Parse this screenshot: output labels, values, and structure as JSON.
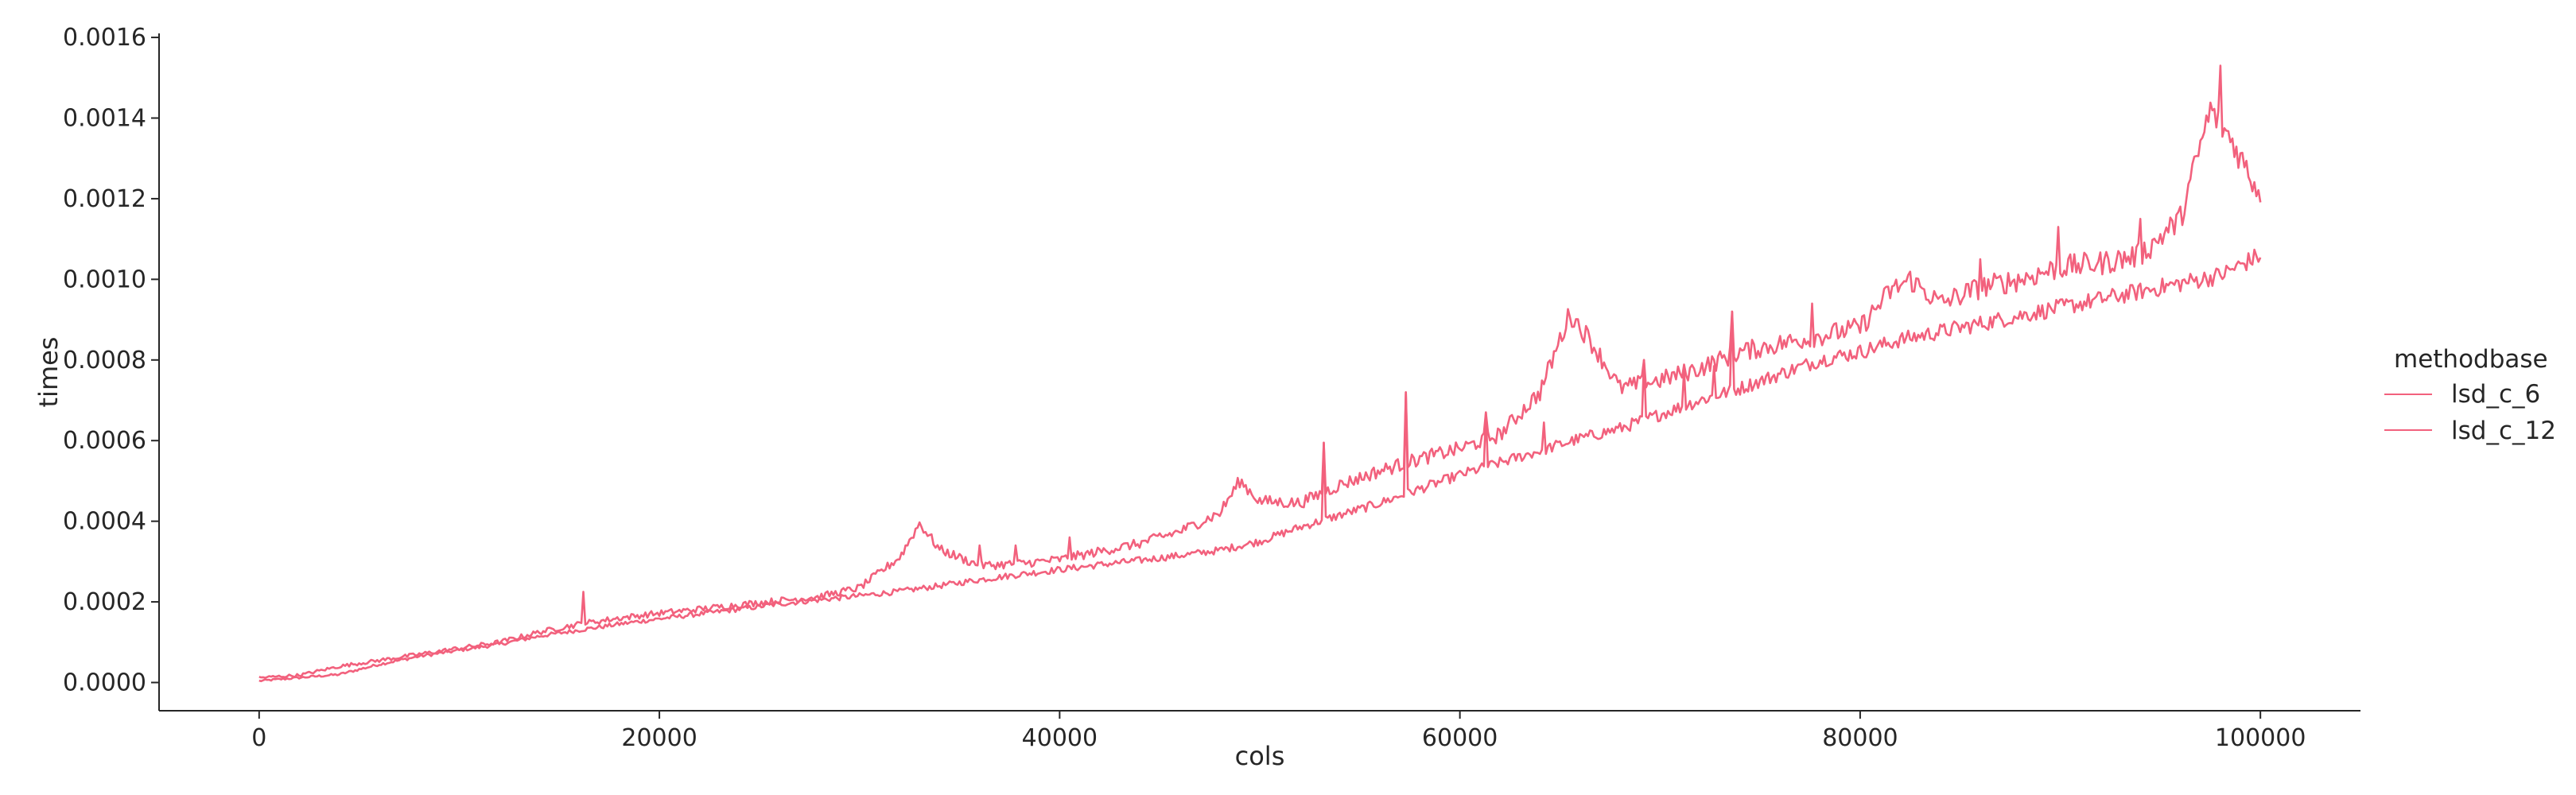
{
  "chart_data": {
    "type": "line",
    "title": "",
    "xlabel": "cols",
    "ylabel": "times",
    "xlim": [
      -5000,
      105000
    ],
    "ylim": [
      -7e-05,
      0.00161
    ],
    "x_ticks": [
      0,
      20000,
      40000,
      60000,
      80000,
      100000
    ],
    "x_tick_labels": [
      "0",
      "20000",
      "40000",
      "60000",
      "80000",
      "100000"
    ],
    "y_ticks": [
      0.0,
      0.0002,
      0.0004,
      0.0006,
      0.0008,
      0.001,
      0.0012,
      0.0014,
      0.0016
    ],
    "y_tick_labels": [
      "0.0000",
      "0.0002",
      "0.0004",
      "0.0006",
      "0.0008",
      "0.0010",
      "0.0012",
      "0.0014",
      "0.0016"
    ],
    "grid": false,
    "legend": {
      "title": "methodbase",
      "placement": "right",
      "entries": [
        "lsd_c_6",
        "lsd_c_12"
      ]
    },
    "series": [
      {
        "name": "lsd_c_6",
        "color": "#f2617d",
        "x": [
          0,
          2000,
          4000,
          6000,
          8000,
          10000,
          12000,
          14000,
          16000,
          18000,
          20000,
          22000,
          24000,
          26000,
          28000,
          30000,
          32000,
          34000,
          36000,
          38000,
          40000,
          42000,
          44000,
          46000,
          48000,
          50000,
          52000,
          54000,
          56000,
          58000,
          60000,
          62000,
          64000,
          66000,
          68000,
          70000,
          72000,
          74000,
          76000,
          78000,
          80000,
          82000,
          84000,
          86000,
          88000,
          90000,
          92000,
          94000,
          96000,
          98000,
          100000
        ],
        "y": [
          4e-06,
          1.2e-05,
          2e-05,
          4.5e-05,
          6.5e-05,
          8e-05,
          9.5e-05,
          0.000115,
          0.00013,
          0.000145,
          0.000158,
          0.00017,
          0.000182,
          0.000195,
          0.000205,
          0.000215,
          0.000226,
          0.00024,
          0.000255,
          0.000268,
          0.00028,
          0.000292,
          0.000303,
          0.000315,
          0.000328,
          0.00035,
          0.000385,
          0.000415,
          0.000445,
          0.00048,
          0.000515,
          0.000545,
          0.000575,
          0.000605,
          0.00063,
          0.000665,
          0.0007,
          0.00073,
          0.000765,
          0.0008,
          0.00082,
          0.00085,
          0.00087,
          0.00089,
          0.00091,
          0.00093,
          0.00095,
          0.00097,
          0.00099,
          0.00101,
          0.00106
        ]
      },
      {
        "name": "lsd_c_12",
        "color": "#f2617d",
        "x": [
          0,
          2000,
          4000,
          6000,
          8000,
          10000,
          12000,
          14000,
          16000,
          18000,
          20000,
          22000,
          24000,
          26000,
          28000,
          30000,
          32000,
          33000,
          34000,
          36000,
          38000,
          40000,
          42000,
          44000,
          46000,
          48000,
          49000,
          50000,
          52000,
          54000,
          56000,
          58000,
          60000,
          62000,
          64000,
          65500,
          66500,
          68000,
          70000,
          72000,
          74000,
          76000,
          78000,
          80000,
          81500,
          82500,
          84000,
          86000,
          88000,
          90000,
          92000,
          94000,
          96000,
          97500,
          98500,
          100000
        ],
        "y": [
          1.2e-05,
          1.8e-05,
          4e-05,
          5.5e-05,
          7e-05,
          8.5e-05,
          0.0001,
          0.000125,
          0.000145,
          0.00016,
          0.000172,
          0.000182,
          0.000193,
          0.000203,
          0.000213,
          0.000235,
          0.00031,
          0.000395,
          0.00033,
          0.00029,
          0.000295,
          0.000305,
          0.000325,
          0.000345,
          0.000375,
          0.00042,
          0.0005,
          0.00045,
          0.000445,
          0.00049,
          0.000525,
          0.000555,
          0.00058,
          0.000615,
          0.00072,
          0.000915,
          0.00085,
          0.00073,
          0.00075,
          0.00078,
          0.00082,
          0.00084,
          0.00086,
          0.00088,
          0.00097,
          0.001,
          0.00094,
          0.00098,
          0.001,
          0.00103,
          0.00104,
          0.00106,
          0.00115,
          0.00142,
          0.00135,
          0.00121
        ]
      }
    ],
    "spikes": [
      {
        "x": 16200,
        "y": 0.000225
      },
      {
        "x": 36000,
        "y": 0.00034
      },
      {
        "x": 37800,
        "y": 0.00034
      },
      {
        "x": 40500,
        "y": 0.00036
      },
      {
        "x": 45000,
        "y": 0.00037
      },
      {
        "x": 48800,
        "y": 0.000365
      },
      {
        "x": 53200,
        "y": 0.000595
      },
      {
        "x": 57300,
        "y": 0.00072
      },
      {
        "x": 61300,
        "y": 0.00067
      },
      {
        "x": 64200,
        "y": 0.000645
      },
      {
        "x": 69200,
        "y": 0.0008
      },
      {
        "x": 71200,
        "y": 0.000775
      },
      {
        "x": 72700,
        "y": 0.000785
      },
      {
        "x": 73600,
        "y": 0.00092
      },
      {
        "x": 77600,
        "y": 0.00094
      },
      {
        "x": 86000,
        "y": 0.00105
      },
      {
        "x": 89900,
        "y": 0.00113
      },
      {
        "x": 94000,
        "y": 0.00115
      },
      {
        "x": 98000,
        "y": 0.00153
      }
    ]
  }
}
